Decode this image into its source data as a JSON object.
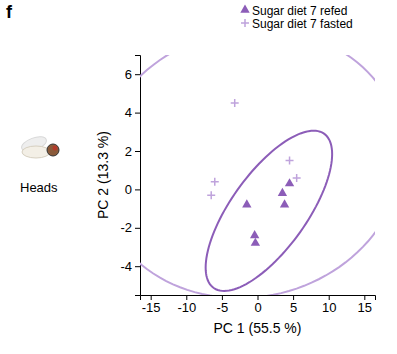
{
  "chart_data": {
    "type": "scatter",
    "annotations": [
      {
        "text": "f"
      },
      {
        "text": "Heads"
      }
    ],
    "x_label": "PC 1 (55.5 %)",
    "y_label": "PC 2 (13.3 %)",
    "xlim": [
      -16.5,
      16.5
    ],
    "xticks": [
      -15,
      -10,
      -5,
      0,
      5,
      10,
      15
    ],
    "ylim": [
      -5.5,
      7
    ],
    "yticks": [
      -4,
      -2,
      0,
      2,
      4,
      6
    ],
    "legend": "top-right",
    "series": [
      {
        "name": "Sugar diet 7 refed",
        "color": "#8c5db8",
        "marker": "triangle",
        "x": [
          -1.5,
          -0.4,
          -0.3,
          3.5,
          3.8,
          4.5
        ],
        "y": [
          -0.8,
          -2.4,
          -2.8,
          -0.2,
          -0.8,
          0.3
        ]
      },
      {
        "name": "Sugar diet 7 fasted",
        "color": "#bfa3dc",
        "marker": "plus",
        "x": [
          -3.2,
          -6.0,
          -6.5,
          4.5,
          5.5
        ],
        "y": [
          4.5,
          0.4,
          -0.3,
          1.5,
          0.6
        ]
      }
    ]
  }
}
